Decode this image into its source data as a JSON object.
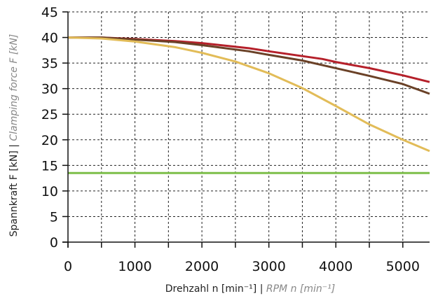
{
  "chart_data": {
    "type": "line",
    "xlim": [
      0,
      5400
    ],
    "ylim": [
      0,
      45
    ],
    "xticks": [
      0,
      1000,
      2000,
      3000,
      4000,
      5000
    ],
    "yticks": [
      0,
      5,
      10,
      15,
      20,
      25,
      30,
      35,
      40,
      45
    ],
    "xticks_minor": [
      500,
      1500,
      2500,
      3500,
      4500
    ],
    "xlabel": {
      "main": "Drehzahl n [min⁻¹] | ",
      "alt": "RPM n [min⁻¹]"
    },
    "ylabel": {
      "main": "Spannkraft F [kN] | ",
      "alt": "Clamping force F [kN]"
    },
    "grid": true,
    "series": [
      {
        "color": "#b5202a",
        "x": [
          0,
          500,
          1000,
          1600,
          2000,
          2700,
          3000,
          3800,
          4000,
          4500,
          5000,
          5400
        ],
        "y": [
          40.0,
          40.0,
          39.7,
          39.3,
          38.9,
          37.9,
          37.3,
          35.8,
          35.2,
          34.0,
          32.6,
          31.3
        ]
      },
      {
        "color": "#6a4127",
        "x": [
          0,
          500,
          1000,
          1600,
          2000,
          2700,
          3000,
          3500,
          4000,
          4500,
          5000,
          5400
        ],
        "y": [
          40.0,
          40.0,
          39.6,
          39.1,
          38.5,
          37.3,
          36.6,
          35.5,
          34.0,
          32.5,
          30.9,
          29.0
        ]
      },
      {
        "color": "#e2bc58",
        "x": [
          0,
          500,
          1000,
          1600,
          2000,
          2500,
          3000,
          3500,
          4000,
          4500,
          5000,
          5400
        ],
        "y": [
          40.0,
          39.8,
          39.2,
          38.1,
          37.0,
          35.3,
          33.0,
          30.1,
          26.6,
          23.0,
          20.0,
          17.8
        ]
      },
      {
        "color": "#7dbf4a",
        "x": [
          0,
          5400
        ],
        "y": [
          13.5,
          13.5
        ]
      }
    ]
  }
}
